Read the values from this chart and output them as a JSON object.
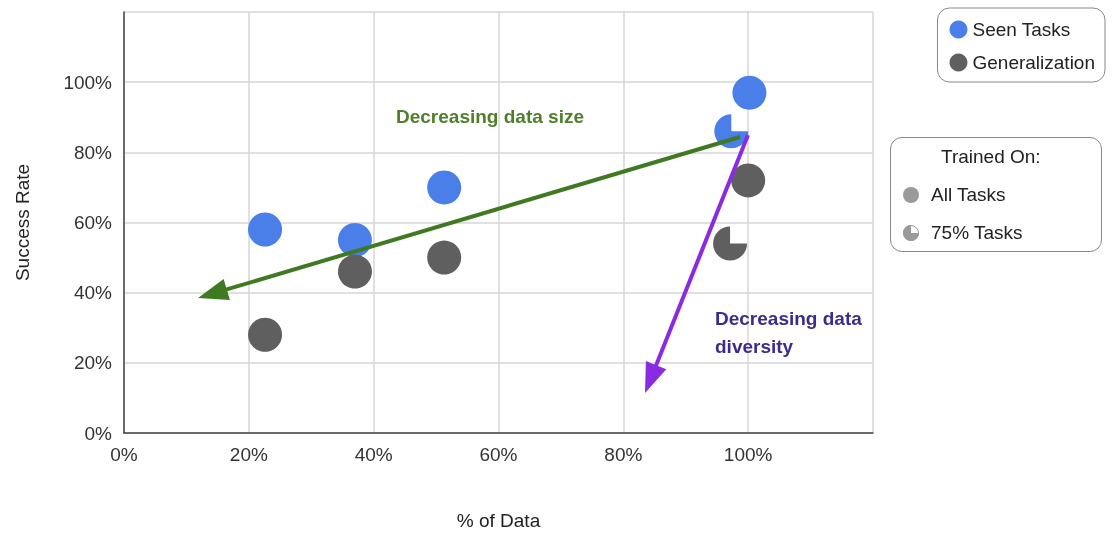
{
  "chart_data": {
    "type": "scatter",
    "xlabel": "% of Data",
    "ylabel": "Success Rate",
    "xlim": [
      0,
      120
    ],
    "ylim": [
      0,
      120
    ],
    "xticks": [
      {
        "value": 0,
        "label": "0%"
      },
      {
        "value": 20,
        "label": "20%"
      },
      {
        "value": 40,
        "label": "40%"
      },
      {
        "value": 60,
        "label": "60%"
      },
      {
        "value": 80,
        "label": "80%"
      },
      {
        "value": 100,
        "label": "100%"
      },
      {
        "value": 120,
        "label": null
      }
    ],
    "yticks": [
      {
        "value": 0,
        "label": "0%"
      },
      {
        "value": 20,
        "label": "20%"
      },
      {
        "value": 40,
        "label": "40%"
      },
      {
        "value": 60,
        "label": "60%"
      },
      {
        "value": 80,
        "label": "80%"
      },
      {
        "value": 100,
        "label": "100%"
      },
      {
        "value": 120,
        "label": null
      }
    ],
    "grid": true,
    "legend": "top right",
    "series": [
      {
        "name": "Seen Tasks",
        "color": "#4a7fea",
        "marker": "circle",
        "x": [
          22.6,
          37,
          51.3,
          100.2
        ],
        "values": [
          58,
          55,
          70,
          97
        ]
      },
      {
        "name": "Generalization",
        "color": "#5f5f5f",
        "marker": "circle",
        "x": [
          22.6,
          37,
          51.3,
          100
        ],
        "values": [
          28,
          46,
          50,
          72
        ]
      },
      {
        "color": "#4a7fea",
        "x": [
          97.3
        ],
        "values": [
          86
        ]
      },
      {
        "color": "#5f5f5f",
        "x": [
          97.1
        ],
        "values": [
          54
        ]
      }
    ],
    "annotations": [
      "Decreasing data size",
      "Decreasing data diversity",
      "Trained On:",
      "All Tasks",
      "75% Tasks"
    ]
  }
}
